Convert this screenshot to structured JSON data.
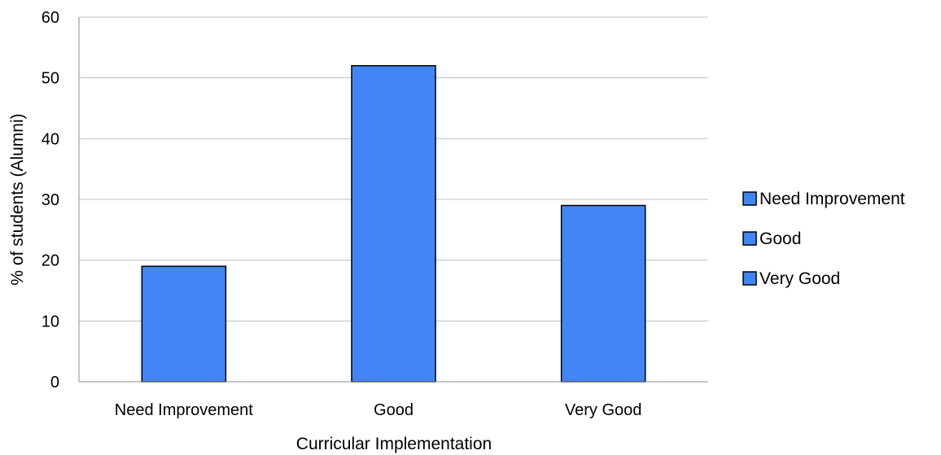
{
  "chart_data": {
    "type": "bar",
    "title": "",
    "xlabel": "Curricular Implementation",
    "ylabel": "% of students (Alumni)",
    "categories": [
      "Need Improvement",
      "Good",
      "Very Good"
    ],
    "values": [
      19,
      52,
      29
    ],
    "ylim": [
      0,
      60
    ],
    "yticks": [
      "0",
      "10",
      "20",
      "30",
      "40",
      "50",
      "60"
    ],
    "grid": true,
    "legend": {
      "placement": "right",
      "entries": [
        "Need Improvement",
        "Good",
        "Very Good"
      ]
    },
    "colors": {
      "bar_fill": "#4285F4",
      "bar_stroke": "#000000",
      "grid": "#bfbfbf",
      "axis": "#8c8c8c"
    }
  }
}
